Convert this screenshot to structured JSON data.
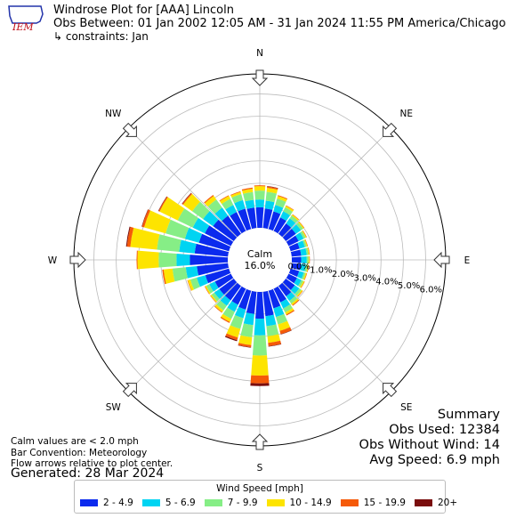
{
  "header": {
    "logo_text": "IEM",
    "title": "Windrose Plot for [AAA] Lincoln",
    "obs_between": "Obs Between: 01 Jan 2002 12:05 AM - 31 Jan 2024 11:55 PM America/Chicago",
    "constraints": "↳ constraints: Jan"
  },
  "chart_data": {
    "type": "windrose",
    "convention": "Meteorology",
    "direction_bins": 36,
    "direction_centers_deg": [
      0,
      10,
      20,
      30,
      40,
      50,
      60,
      70,
      80,
      90,
      100,
      110,
      120,
      130,
      140,
      150,
      160,
      170,
      180,
      190,
      200,
      210,
      220,
      230,
      240,
      250,
      260,
      270,
      280,
      290,
      300,
      310,
      320,
      330,
      340,
      350
    ],
    "radial_ticks": [
      "0.0%",
      "1.0%",
      "2.0%",
      "3.0%",
      "4.0%",
      "5.0%",
      "6.0%"
    ],
    "radial_tick_values": [
      0,
      1,
      2,
      3,
      4,
      5,
      6
    ],
    "rmax_percent": 6.9,
    "compass_labels": [
      "N",
      "NE",
      "E",
      "SE",
      "S",
      "SW",
      "W",
      "NW"
    ],
    "calm_label": "Calm",
    "calm_value": "16.0%",
    "series": [
      {
        "name": "2 - 4.9",
        "color": "#0b2aee",
        "values": [
          0.92,
          0.88,
          0.82,
          0.68,
          0.58,
          0.56,
          0.5,
          0.42,
          0.43,
          0.42,
          0.42,
          0.4,
          0.42,
          0.5,
          0.58,
          0.68,
          0.82,
          1.1,
          1.2,
          1.0,
          0.88,
          0.8,
          0.8,
          0.8,
          0.8,
          1.1,
          1.4,
          1.7,
          1.5,
          1.4,
          1.3,
          1.15,
          1.0,
          0.95,
          0.95,
          0.92
        ]
      },
      {
        "name": "5 - 6.9",
        "color": "#00d4f2",
        "values": [
          0.35,
          0.35,
          0.3,
          0.3,
          0.28,
          0.28,
          0.25,
          0.25,
          0.25,
          0.25,
          0.22,
          0.22,
          0.22,
          0.25,
          0.25,
          0.3,
          0.4,
          0.45,
          0.75,
          0.5,
          0.4,
          0.35,
          0.3,
          0.28,
          0.28,
          0.4,
          0.5,
          0.6,
          0.7,
          0.65,
          0.6,
          0.55,
          0.45,
          0.35,
          0.4,
          0.35
        ]
      },
      {
        "name": "7 - 9.9",
        "color": "#86ee86",
        "values": [
          0.4,
          0.4,
          0.3,
          0.2,
          0.15,
          0.12,
          0.1,
          0.08,
          0.08,
          0.08,
          0.08,
          0.08,
          0.1,
          0.12,
          0.15,
          0.2,
          0.35,
          0.45,
          0.9,
          0.55,
          0.5,
          0.35,
          0.25,
          0.15,
          0.15,
          0.3,
          0.6,
          0.8,
          1.0,
          0.9,
          0.75,
          0.6,
          0.45,
          0.3,
          0.28,
          0.35
        ]
      },
      {
        "name": "10 - 14.9",
        "color": "#fde400",
        "values": [
          0.2,
          0.18,
          0.12,
          0.08,
          0.06,
          0.05,
          0.04,
          0.04,
          0.04,
          0.04,
          0.04,
          0.05,
          0.05,
          0.06,
          0.08,
          0.1,
          0.3,
          0.3,
          0.9,
          0.35,
          0.4,
          0.15,
          0.1,
          0.06,
          0.06,
          0.12,
          0.4,
          0.95,
          1.2,
          1.0,
          0.9,
          0.5,
          0.2,
          0.15,
          0.1,
          0.15
        ]
      },
      {
        "name": "15 - 19.9",
        "color": "#f55a08",
        "values": [
          0.04,
          0.06,
          0.04,
          0.02,
          0.02,
          0.02,
          0.02,
          0.02,
          0.02,
          0.02,
          0.02,
          0.02,
          0.02,
          0.02,
          0.04,
          0.05,
          0.15,
          0.15,
          0.35,
          0.1,
          0.12,
          0.05,
          0.03,
          0.02,
          0.02,
          0.02,
          0.06,
          0.04,
          0.15,
          0.1,
          0.05,
          0.05,
          0.05,
          0.03,
          0.03,
          0.05
        ]
      },
      {
        "name": "20+",
        "color": "#7a0d0d",
        "values": [
          0,
          0.02,
          0,
          0,
          0,
          0,
          0,
          0,
          0,
          0,
          0,
          0,
          0,
          0,
          0,
          0,
          0.02,
          0.02,
          0.12,
          0.02,
          0.05,
          0,
          0,
          0,
          0,
          0,
          0,
          0,
          0.04,
          0.02,
          0.02,
          0.02,
          0,
          0,
          0,
          0
        ]
      }
    ],
    "legend_title": "Wind Speed [mph]",
    "legend_placement": "bottom-center"
  },
  "summary": {
    "title": "Summary",
    "obs_used": "Obs Used: 12384",
    "obs_without_wind": "Obs Without Wind: 14",
    "avg_speed": "Avg Speed: 6.9 mph"
  },
  "notes": {
    "line1": "Calm values are < 2.0 mph",
    "line2": "Bar Convention: Meteorology",
    "line3": "Flow arrows relative to plot center.",
    "generated": "Generated: 28 Mar 2024"
  }
}
